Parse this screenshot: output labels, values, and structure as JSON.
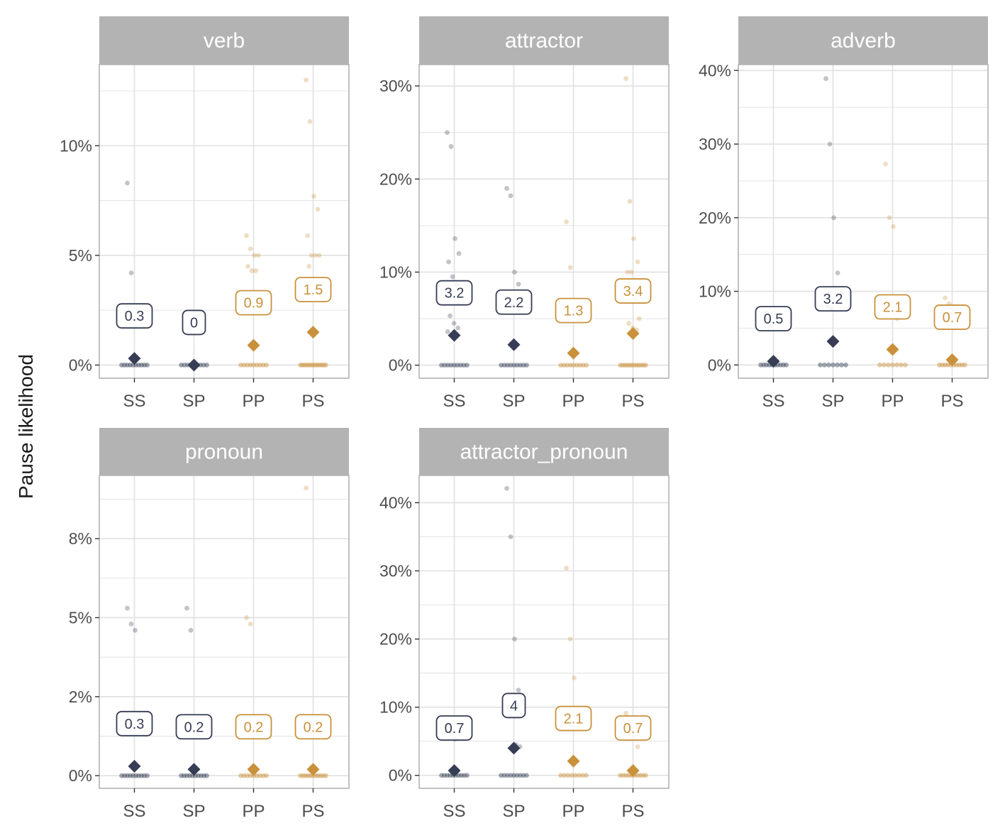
{
  "chart_data": {
    "type": "scatter",
    "ylabel": "Pause likelihood",
    "categories": [
      "SS",
      "SP",
      "PP",
      "PS"
    ],
    "colors": {
      "singular_head": "#363d54",
      "plural_head": "#c9913b",
      "strip_bg": "#b3b3b3",
      "grid": "#e0e0e0",
      "panel_border": "#b3b3b3"
    },
    "category_color_group": {
      "SS": "singular_head",
      "SP": "singular_head",
      "PP": "plural_head",
      "PS": "plural_head"
    },
    "panels": [
      {
        "title": "verb",
        "ylim": [
          -0.6,
          13.7
        ],
        "yticks": [
          0,
          5,
          10
        ],
        "ytick_labels": [
          "0%",
          "5%",
          "10%"
        ],
        "minor_yticks": [
          2.5,
          7.5,
          12.5
        ],
        "means": [
          0.3,
          0,
          0.9,
          1.5
        ],
        "mean_labels": [
          "0.3",
          "0",
          "0.9",
          "1.5"
        ],
        "points": {
          "SS": [
            8.3,
            4.2
          ],
          "SP": [],
          "PP": [
            5.9,
            5.3,
            5.0,
            5.0,
            4.5,
            4.3,
            4.3
          ],
          "PS": [
            13.0,
            11.1,
            7.7,
            7.1,
            5.9,
            5.0,
            5.0,
            5.0,
            4.5
          ]
        },
        "zero_counts": [
          10,
          9,
          9,
          13
        ]
      },
      {
        "title": "attractor",
        "ylim": [
          -1.4,
          32.3
        ],
        "yticks": [
          0,
          10,
          20,
          30
        ],
        "ytick_labels": [
          "0%",
          "10%",
          "20%",
          "30%"
        ],
        "minor_yticks": [
          5,
          15,
          25
        ],
        "means": [
          3.2,
          2.2,
          1.3,
          3.4
        ],
        "mean_labels": [
          "3.2",
          "2.2",
          "1.3",
          "3.4"
        ],
        "points": {
          "SS": [
            25.0,
            23.5,
            13.6,
            12.0,
            11.1,
            9.5,
            8.7,
            7.4,
            5.3,
            4.5,
            4.0,
            3.6
          ],
          "SP": [
            19.0,
            18.2,
            10.0,
            8.7,
            6.7,
            6.3
          ],
          "PP": [
            15.4,
            10.5,
            5.9
          ],
          "PS": [
            30.8,
            17.6,
            13.6,
            11.1,
            10.0,
            10.0,
            7.1,
            5.0,
            4.5,
            4.0,
            3.8
          ]
        },
        "zero_counts": [
          9,
          9,
          9,
          12
        ]
      },
      {
        "title": "adverb",
        "ylim": [
          -1.8,
          40.8
        ],
        "yticks": [
          0,
          10,
          20,
          30,
          40
        ],
        "ytick_labels": [
          "0%",
          "10%",
          "20%",
          "30%",
          "40%"
        ],
        "minor_yticks": [
          5,
          15,
          25,
          35
        ],
        "means": [
          0.5,
          3.2,
          2.1,
          0.7
        ],
        "mean_labels": [
          "0.5",
          "3.2",
          "2.1",
          "0.7"
        ],
        "points": {
          "SS": [
            7.1,
            5.3
          ],
          "SP": [
            38.9,
            30.0,
            20.0,
            12.5,
            8.0,
            7.7
          ],
          "PP": [
            27.3,
            20.0,
            18.8,
            6.3
          ],
          "PS": [
            9.1,
            8.3,
            7.1
          ]
        },
        "zero_counts": [
          10,
          7,
          7,
          10
        ]
      },
      {
        "title": "pronoun",
        "ylim": [
          -0.4,
          9.5
        ],
        "yticks": [
          0,
          2.5,
          5,
          7.5
        ],
        "ytick_labels": [
          "0%",
          "2%",
          "5%",
          "8%"
        ],
        "minor_yticks": [
          1.25,
          3.75,
          6.25,
          8.75
        ],
        "means": [
          0.3,
          0.2,
          0.2,
          0.2
        ],
        "mean_labels": [
          "0.3",
          "0.2",
          "0.2",
          "0.2"
        ],
        "points": {
          "SS": [
            5.3,
            4.8,
            4.6
          ],
          "SP": [
            5.3,
            4.6
          ],
          "PP": [
            5.0,
            4.8
          ],
          "PS": [
            9.1
          ]
        },
        "zero_counts": [
          10,
          10,
          9,
          11
        ]
      },
      {
        "title": "attractor_pronoun",
        "ylim": [
          -1.9,
          44.0
        ],
        "yticks": [
          0,
          10,
          20,
          30,
          40
        ],
        "ytick_labels": [
          "0%",
          "10%",
          "20%",
          "30%",
          "40%"
        ],
        "minor_yticks": [
          5,
          15,
          25,
          35
        ],
        "means": [
          0.7,
          4,
          2.1,
          0.7
        ],
        "mean_labels": [
          "0.7",
          "4",
          "2.1",
          "0.7"
        ],
        "points": {
          "SS": [
            7.1,
            6.3,
            5.3
          ],
          "SP": [
            42.1,
            35.0,
            20.0,
            12.5,
            10.0,
            10.0,
            4.5,
            4.2
          ],
          "PP": [
            30.4,
            20.0,
            14.3
          ],
          "PS": [
            9.1,
            7.1,
            5.6,
            4.2
          ]
        },
        "zero_counts": [
          10,
          9,
          8,
          10
        ]
      }
    ]
  }
}
